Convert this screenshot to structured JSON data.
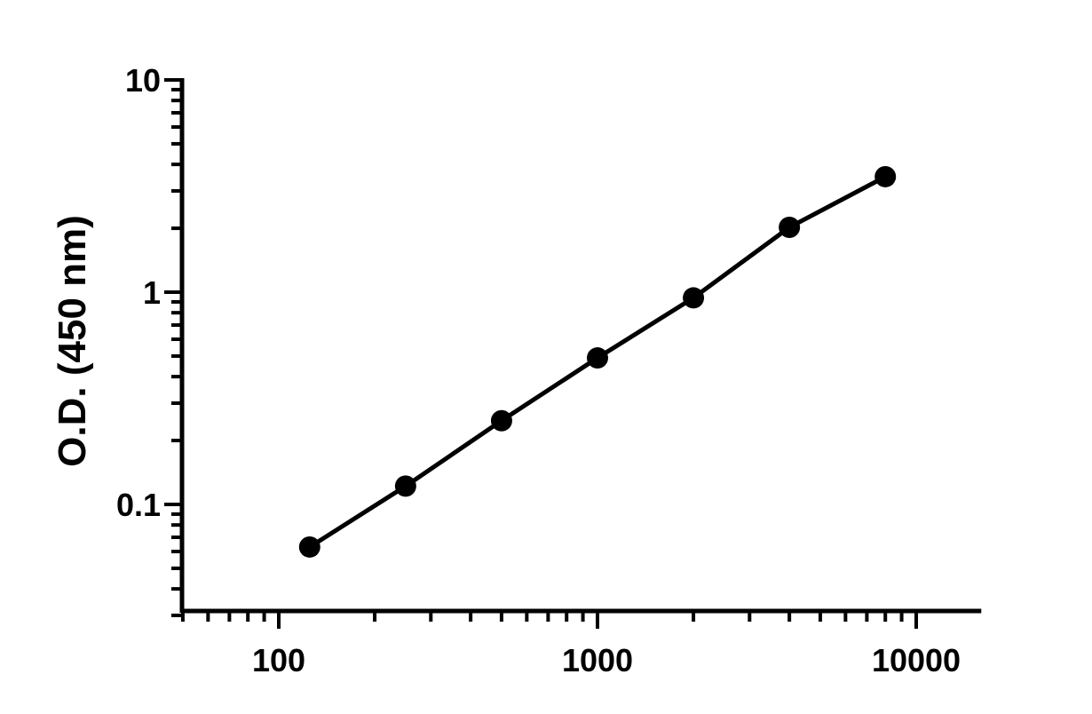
{
  "chart_data": {
    "type": "line",
    "title": "",
    "xlabel": "",
    "ylabel": "O.D. (450 nm)",
    "x_scale": "log",
    "y_scale": "log",
    "xlim": [
      50,
      16000
    ],
    "ylim": [
      0.03,
      10
    ],
    "x_ticks": [
      {
        "value": 100,
        "label": "100"
      },
      {
        "value": 1000,
        "label": "1000"
      },
      {
        "value": 10000,
        "label": "10000"
      }
    ],
    "y_ticks": [
      {
        "value": 0.1,
        "label": "0.1"
      },
      {
        "value": 1,
        "label": "1"
      },
      {
        "value": 10,
        "label": "10"
      }
    ],
    "grid": false,
    "legend": "none",
    "color": "#000000",
    "series": [
      {
        "x": [
          125,
          250,
          500,
          1000,
          2000,
          4000,
          8000
        ],
        "y": [
          0.063,
          0.122,
          0.248,
          0.49,
          0.94,
          2.02,
          3.5
        ]
      }
    ]
  }
}
